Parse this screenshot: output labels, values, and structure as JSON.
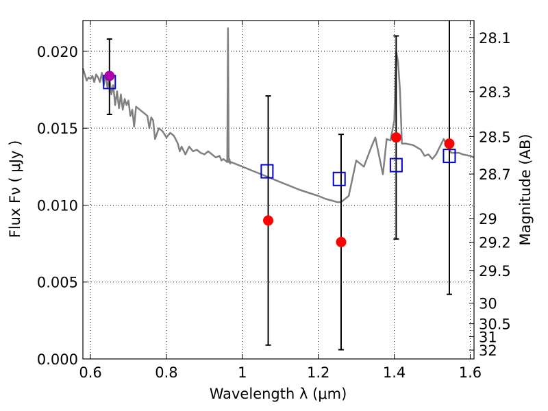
{
  "chart_data": {
    "type": "scatter",
    "title": "",
    "xlabel": "Wavelength  λ (μm)",
    "ylabel": "Flux  Fν  ( μJy )",
    "ylabel_right": "Magnitude (AB)",
    "xlim": [
      0.58,
      1.61
    ],
    "ylim": [
      0.0,
      0.022
    ],
    "grid": true,
    "x_ticks": [
      0.6,
      0.8,
      1.0,
      1.2,
      1.4,
      1.6
    ],
    "x_tick_labels": [
      "0.6",
      "0.8",
      "1",
      "1.2",
      "1.4",
      "1.6"
    ],
    "y_ticks": [
      0.0,
      0.005,
      0.01,
      0.015,
      0.02
    ],
    "y_tick_labels": [
      "0.000",
      "0.005",
      "0.010",
      "0.015",
      "0.020"
    ],
    "mag_ticks": [
      28.1,
      28.3,
      28.5,
      28.7,
      29,
      29.2,
      29.5,
      30,
      30.5,
      31,
      32
    ],
    "mag_tick_labels": [
      "28.1",
      "28.3",
      "28.5",
      "28.7",
      "29",
      "29.2",
      "29.5",
      "30",
      "30.5",
      "31",
      "32"
    ],
    "colors": {
      "model": "#808080",
      "observed": "#ff0000",
      "highlight": "#aa00aa",
      "model_photometry": "#0000cc",
      "errorbar": "#000000"
    },
    "series": [
      {
        "name": "model_spectrum",
        "kind": "line",
        "x": [
          0.58,
          0.585,
          0.59,
          0.595,
          0.6,
          0.605,
          0.61,
          0.615,
          0.62,
          0.625,
          0.63,
          0.635,
          0.64,
          0.645,
          0.65,
          0.655,
          0.66,
          0.665,
          0.67,
          0.675,
          0.68,
          0.685,
          0.69,
          0.695,
          0.7,
          0.705,
          0.71,
          0.715,
          0.72,
          0.73,
          0.74,
          0.75,
          0.755,
          0.76,
          0.765,
          0.77,
          0.78,
          0.79,
          0.8,
          0.81,
          0.82,
          0.83,
          0.835,
          0.84,
          0.85,
          0.86,
          0.87,
          0.88,
          0.89,
          0.9,
          0.91,
          0.92,
          0.93,
          0.94,
          0.945,
          0.95,
          0.955,
          0.96,
          0.962,
          0.964,
          0.966,
          0.968,
          0.97,
          0.98,
          1.0,
          1.05,
          1.1,
          1.15,
          1.2,
          1.22,
          1.25,
          1.26,
          1.28,
          1.3,
          1.32,
          1.34,
          1.35,
          1.37,
          1.38,
          1.39,
          1.4,
          1.405,
          1.41,
          1.415,
          1.42,
          1.43,
          1.45,
          1.47,
          1.48,
          1.49,
          1.5,
          1.51,
          1.53,
          1.55,
          1.57,
          1.58,
          1.6,
          1.61
        ],
        "y": [
          0.0189,
          0.0185,
          0.0181,
          0.0183,
          0.0182,
          0.0184,
          0.018,
          0.0185,
          0.0183,
          0.018,
          0.0186,
          0.0178,
          0.0185,
          0.0176,
          0.0183,
          0.0172,
          0.0178,
          0.0165,
          0.0174,
          0.0163,
          0.0172,
          0.0162,
          0.0169,
          0.0165,
          0.0168,
          0.0158,
          0.0162,
          0.0151,
          0.0164,
          0.0162,
          0.016,
          0.0158,
          0.015,
          0.0157,
          0.0155,
          0.0143,
          0.015,
          0.0148,
          0.0144,
          0.0147,
          0.0145,
          0.014,
          0.0135,
          0.0138,
          0.0133,
          0.0138,
          0.0135,
          0.0136,
          0.0134,
          0.0133,
          0.0135,
          0.0133,
          0.0131,
          0.0132,
          0.0129,
          0.013,
          0.0129,
          0.0128,
          0.0215,
          0.0128,
          0.013,
          0.0127,
          0.0128,
          0.0127,
          0.0125,
          0.012,
          0.0115,
          0.011,
          0.0106,
          0.0104,
          0.0102,
          0.0102,
          0.0106,
          0.0129,
          0.0125,
          0.0138,
          0.0144,
          0.012,
          0.0143,
          0.0142,
          0.0155,
          0.02,
          0.0193,
          0.0175,
          0.014,
          0.014,
          0.0139,
          0.0136,
          0.0132,
          0.0133,
          0.013,
          0.0133,
          0.0143,
          0.0134,
          0.0134,
          0.0133,
          0.0132,
          0.0131
        ]
      },
      {
        "name": "model_photometry",
        "kind": "open_square",
        "x": [
          0.65,
          1.065,
          1.255,
          1.405,
          1.545
        ],
        "y": [
          0.018,
          0.0122,
          0.0117,
          0.0126,
          0.0132
        ]
      },
      {
        "name": "observed_flux",
        "kind": "filled_circle",
        "x": [
          0.65,
          1.068,
          1.26,
          1.405,
          1.545
        ],
        "y": [
          0.0184,
          0.009,
          0.0076,
          0.0144,
          0.014
        ],
        "yerr_low": [
          0.0159,
          0.0009,
          0.0006,
          0.0078,
          0.0042
        ],
        "yerr_high": [
          0.0208,
          0.0171,
          0.0146,
          0.021,
          0.0222
        ],
        "highlight_index": 0
      }
    ]
  }
}
